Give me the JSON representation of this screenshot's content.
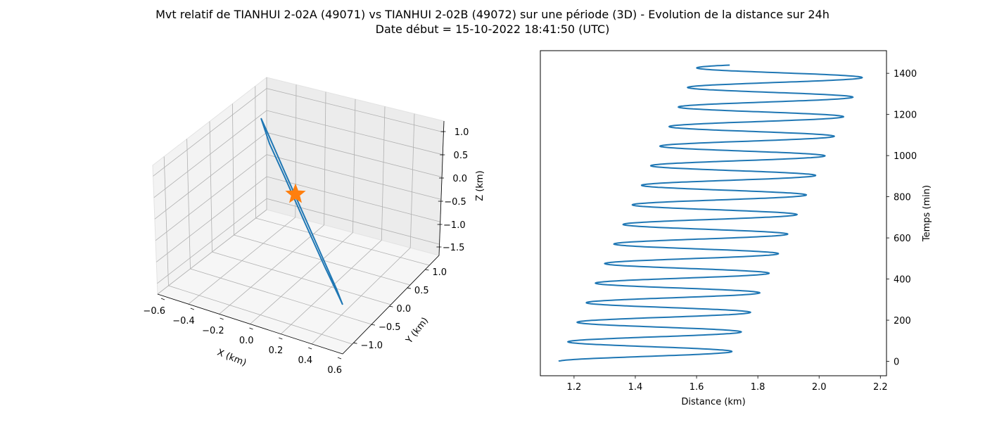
{
  "figure": {
    "title_line1": "Mvt relatif de TIANHUI 2-02A (49071) vs TIANHUI 2-02B (49072) sur une période (3D) - Evolution de la distance sur 24h",
    "title_line2": "Date début = 15-10-2022 18:41:50 (UTC)"
  },
  "colors": {
    "line": "#1f77b4",
    "marker": "#ff7f0e",
    "grid": "#b0b0b0",
    "pane": "#f2f2f2"
  },
  "chart_data": [
    {
      "type": "line",
      "projection": "3d",
      "xlabel": "X (km)",
      "ylabel": "Y (km)",
      "zlabel": "Z (km)",
      "xticks": [
        "−0.6",
        "−0.4",
        "−0.2",
        "0.0",
        "0.2",
        "0.4",
        "0.6"
      ],
      "yticks": [
        "−1.0",
        "−0.5",
        "0.0",
        "0.5",
        "1.0"
      ],
      "zticks": [
        "−1.5",
        "−1.0",
        "−0.5",
        "0.0",
        "0.5",
        "1.0"
      ],
      "xlim": [
        -0.6,
        0.6
      ],
      "ylim": [
        -1.25,
        1.25
      ],
      "zlim": [
        -1.6,
        1.15
      ],
      "grid": true,
      "series": [
        {
          "points": [
            [
              -0.64,
              1.28,
              0.86
            ],
            [
              0.0,
              0.0,
              -0.1
            ],
            [
              0.64,
              -1.28,
              -1.46
            ],
            [
              0.0,
              0.0,
              -0.5
            ],
            [
              -0.64,
              1.28,
              0.86
            ]
          ]
        }
      ],
      "marker": {
        "shape": "star",
        "point": [
          0.0,
          0.0,
          -0.3
        ]
      }
    },
    {
      "type": "line",
      "xlabel": "Distance (km)",
      "ylabel": "Temps (min)",
      "xticks": [
        "1.2",
        "1.4",
        "1.6",
        "1.8",
        "2.0",
        "2.2"
      ],
      "yticks": [
        "0",
        "200",
        "400",
        "600",
        "800",
        "1000",
        "1200",
        "1400"
      ],
      "xlim": [
        1.09,
        2.22
      ],
      "ylim": [
        -70,
        1510
      ],
      "grid": false,
      "series": [
        {
          "description_points": "distance oscillates with period ~95 min; minima rise from 1.15 to 1.60 km, maxima rise from 1.70 to 2.16 km over 1440 min",
          "t_start": 0,
          "t_end": 1440,
          "period": 95.1,
          "min_start": 1.15,
          "min_end": 1.605,
          "max_start": 1.7,
          "max_end": 2.16,
          "end_value": 1.8
        }
      ]
    }
  ]
}
